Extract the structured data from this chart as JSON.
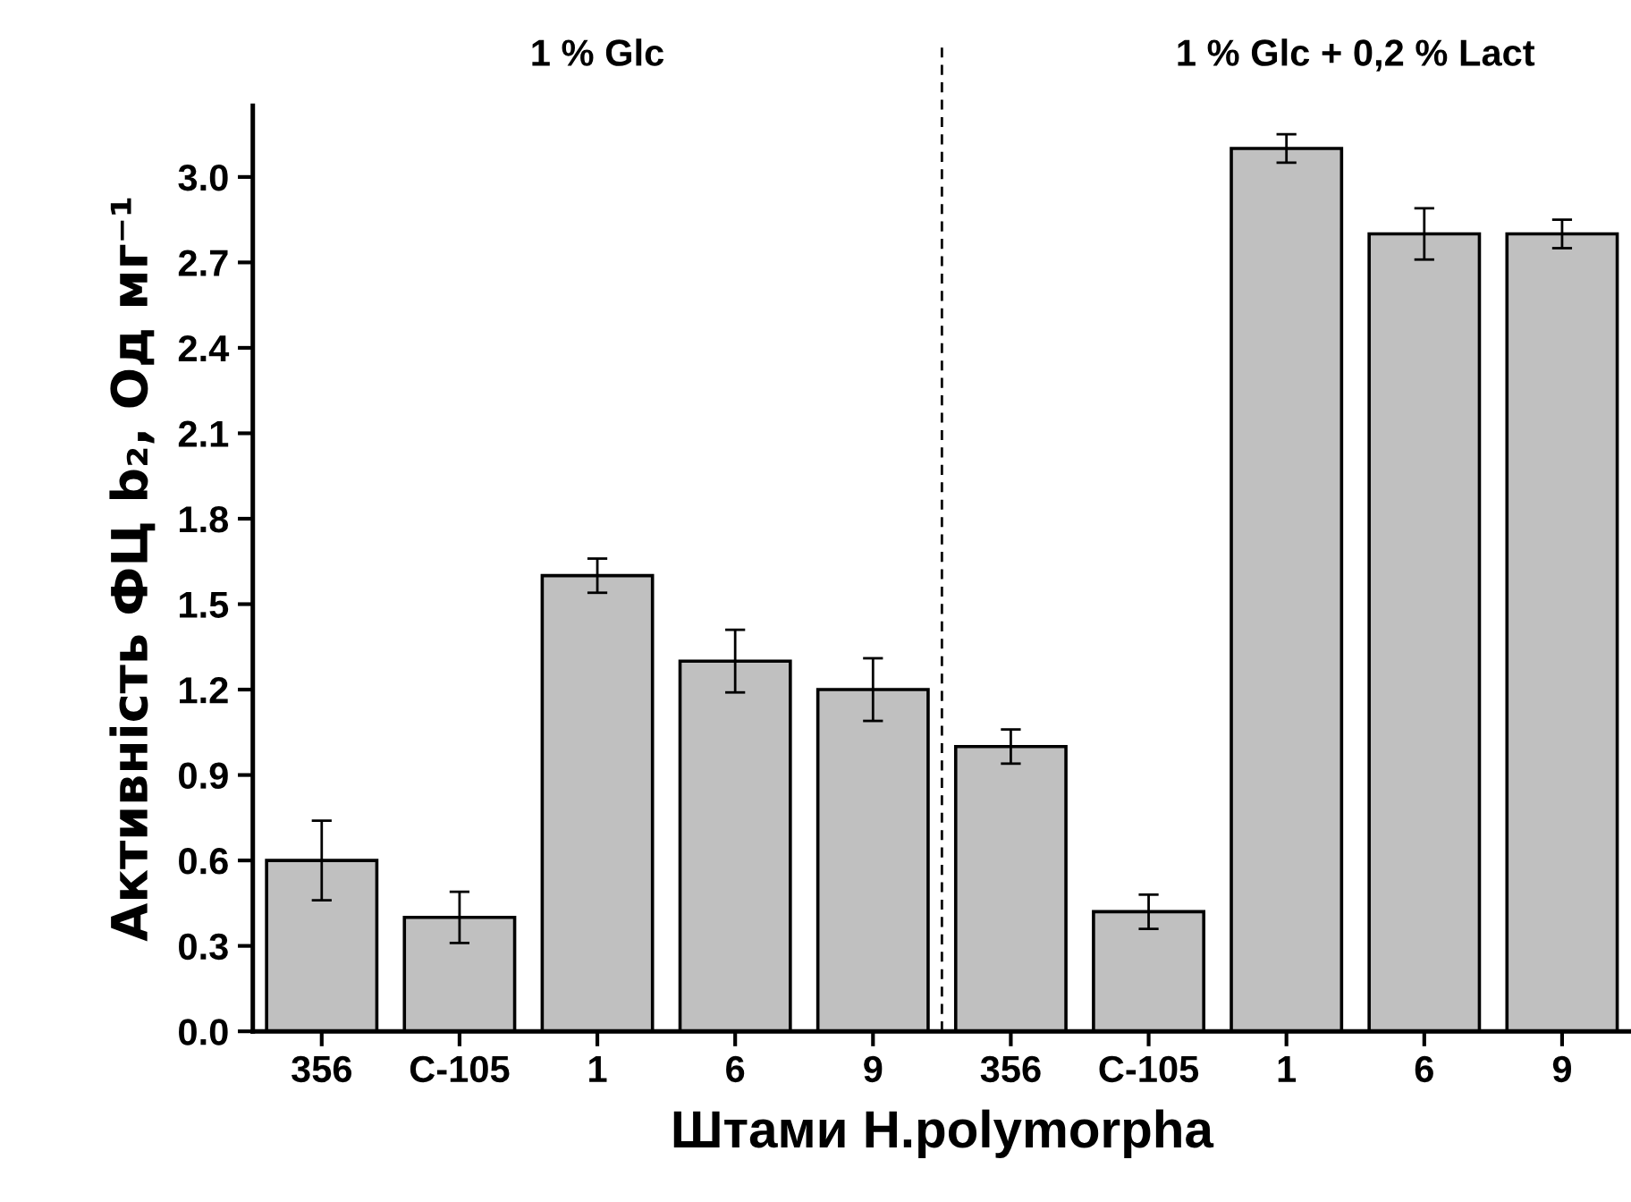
{
  "chart_data": {
    "type": "bar",
    "xlabel": "Штами H.polymorpha",
    "ylabel": "Активність ФЦ b₂, Од мг⁻¹",
    "categories": [
      "356",
      "C-105",
      "1",
      "6",
      "9",
      "356",
      "C-105",
      "1",
      "6",
      "9"
    ],
    "values": [
      0.6,
      0.4,
      1.6,
      1.3,
      1.2,
      1.0,
      0.42,
      3.1,
      2.8,
      2.8
    ],
    "errors": [
      0.14,
      0.09,
      0.06,
      0.11,
      0.11,
      0.06,
      0.06,
      0.05,
      0.09,
      0.05
    ],
    "color": "#c0c0c0",
    "ylim": [
      0,
      3.25
    ],
    "yticks": [
      {
        "value": 0,
        "label": "0.0"
      },
      0.3,
      0.6,
      0.9,
      1.2,
      1.5,
      1.8,
      2.1,
      2.4,
      2.7,
      {
        "value": 3,
        "label": "3.0"
      }
    ],
    "annotations": [
      "1 % Glc",
      "1 % Glc + 0,2 % Lact"
    ],
    "grid": false,
    "legend": false
  }
}
